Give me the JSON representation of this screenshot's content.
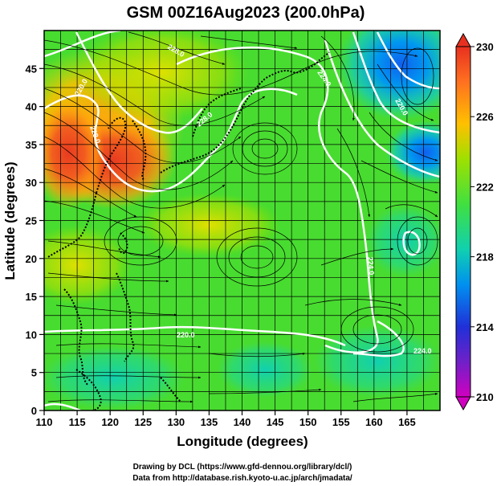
{
  "title": "GSM 00Z16Aug2023 (200.0hPa)",
  "x_axis": {
    "label": "Longitude (degrees)",
    "min": 110,
    "max": 170,
    "ticks": [
      110,
      115,
      120,
      125,
      130,
      135,
      140,
      145,
      150,
      155,
      160,
      165
    ]
  },
  "y_axis": {
    "label": "Latitude  (degrees)",
    "min": 0,
    "max": 50,
    "ticks": [
      0,
      5,
      10,
      15,
      20,
      25,
      30,
      35,
      40,
      45
    ]
  },
  "colorbar": {
    "min": 210,
    "max": 230,
    "labels": [
      210,
      214,
      218,
      222,
      226,
      230
    ],
    "colors": [
      "#d000c0",
      "#3030d8",
      "#00b0f0",
      "#30d890",
      "#50e020",
      "#c0e000",
      "#ffb000",
      "#ff6020",
      "#e83020"
    ]
  },
  "credits": {
    "line1": "Drawing by DCL (https://www.gfd-dennou.org/library/dcl/)",
    "line2": "Data from http://database.rish.kyoto-u.ac.jp/arch/jmadata/"
  },
  "contour_labels": [
    "220.0",
    "228.0",
    "228.0",
    "228.0",
    "224.0",
    "224.0",
    "220.0",
    "220.0",
    "224.0"
  ]
}
